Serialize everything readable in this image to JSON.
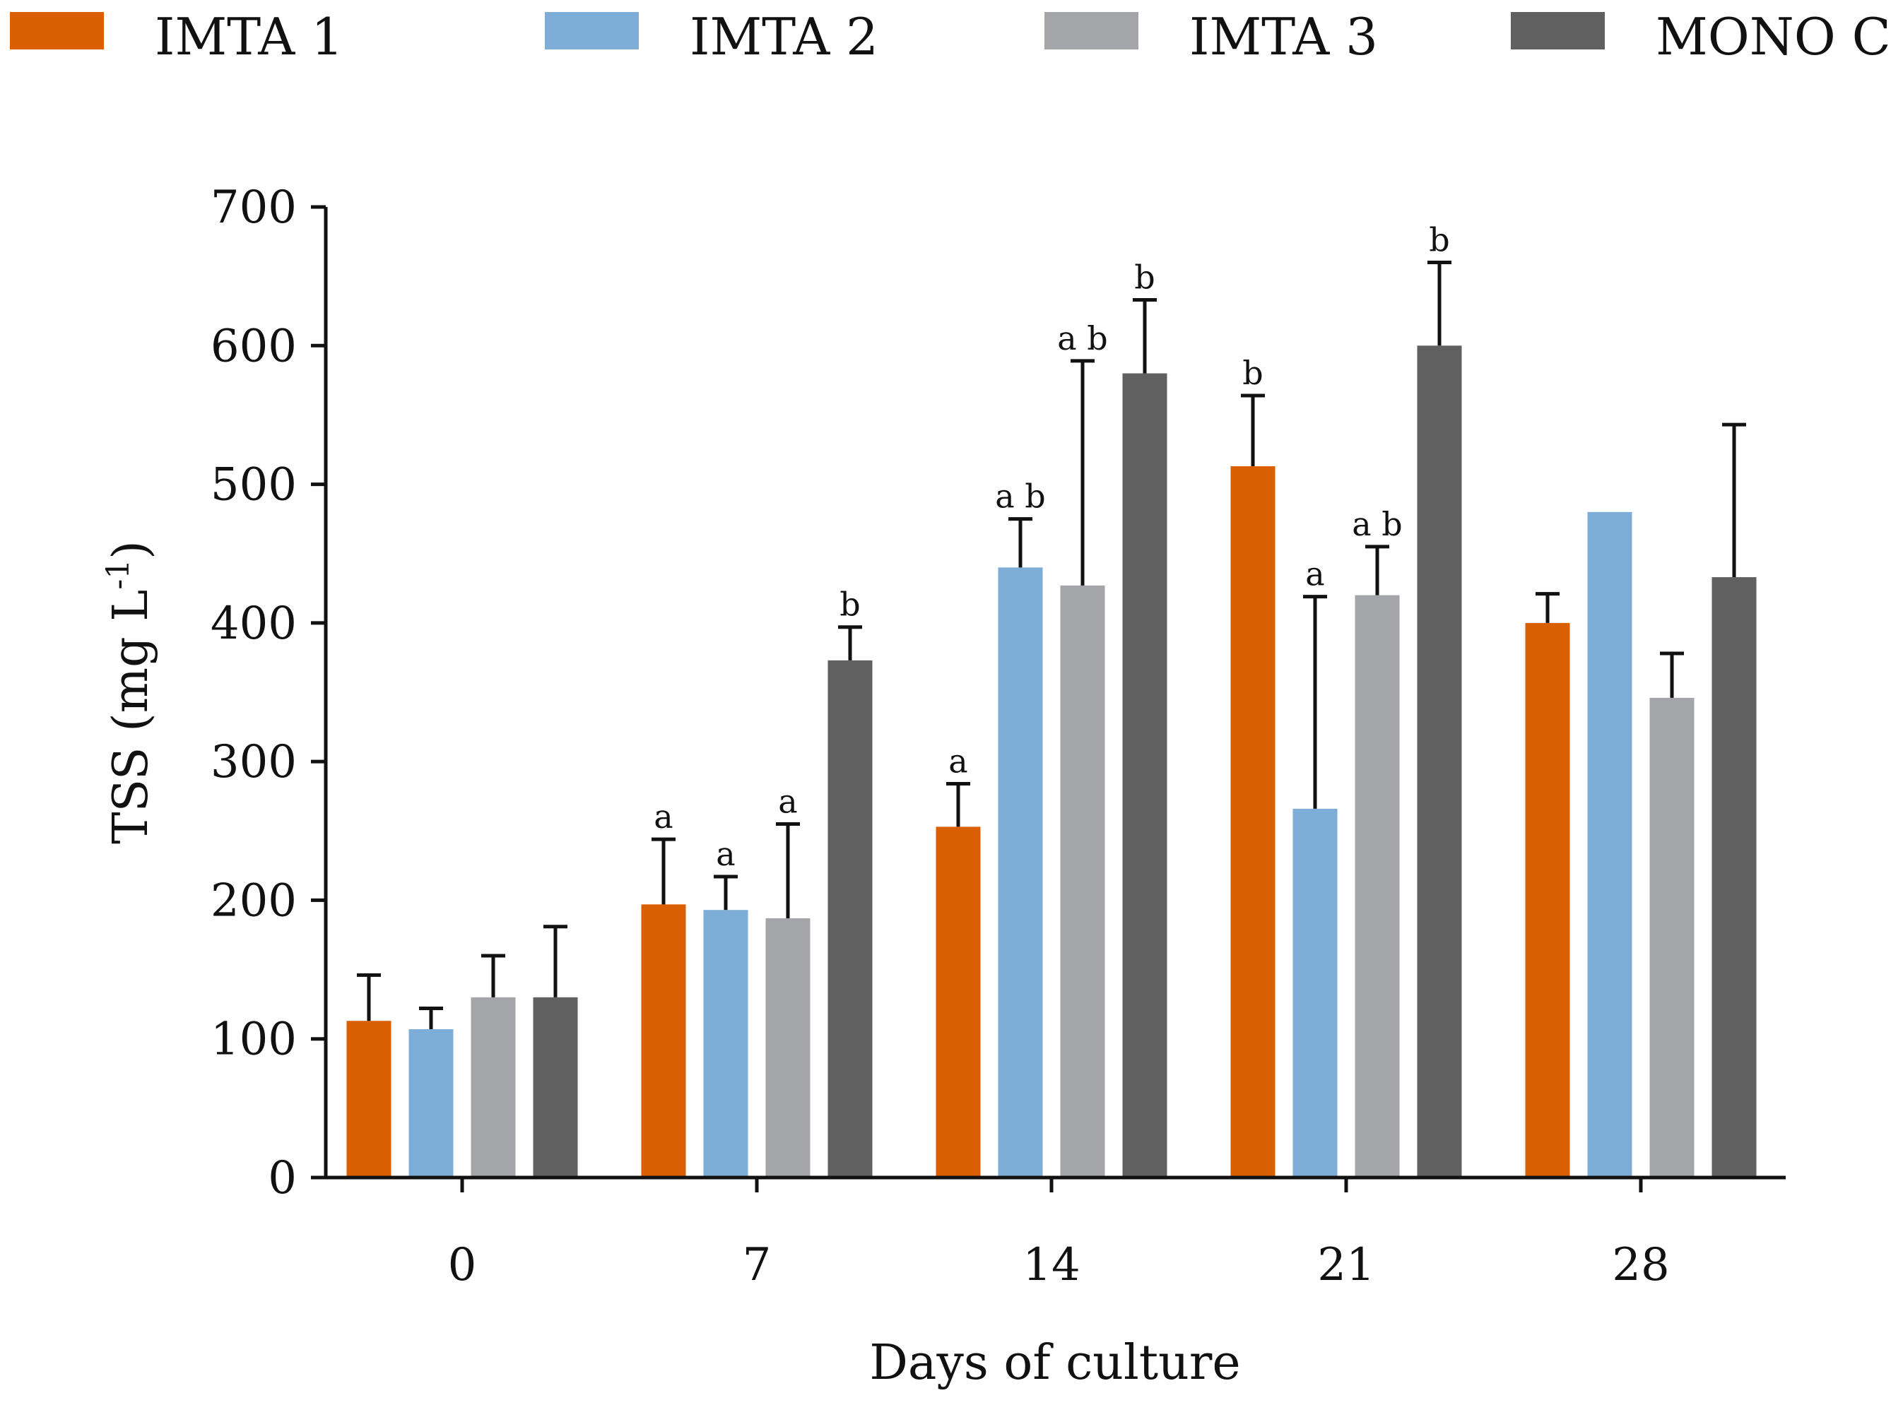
{
  "chart_data": {
    "type": "bar",
    "title": "",
    "xlabel": "Days of culture",
    "ylabel": "TSS (mg L",
    "ylabel_superscript": "-1",
    "ylabel_close": ")",
    "ylim": [
      0,
      700
    ],
    "yticks": [
      0,
      100,
      200,
      300,
      400,
      500,
      600,
      700
    ],
    "categories": [
      "0",
      "7",
      "14",
      "21",
      "28"
    ],
    "legend_position": "top",
    "series": [
      {
        "name": "IMTA 1",
        "color": "#D95F02",
        "values": [
          113,
          197,
          253,
          513,
          400
        ],
        "errors": [
          33,
          47,
          31,
          51,
          21
        ],
        "labels": [
          "",
          "a",
          "a",
          "b",
          ""
        ]
      },
      {
        "name": "IMTA 2",
        "color": "#7EAED8",
        "values": [
          107,
          193,
          440,
          266,
          480
        ],
        "errors": [
          15,
          24,
          35,
          153,
          0
        ],
        "labels": [
          "",
          "a",
          "a b",
          "a",
          ""
        ]
      },
      {
        "name": "IMTA 3",
        "color": "#A4A5A8",
        "values": [
          130,
          187,
          427,
          420,
          346
        ],
        "errors": [
          30,
          68,
          162,
          35,
          32
        ],
        "labels": [
          "",
          "a",
          "a b",
          "a b",
          ""
        ]
      },
      {
        "name": "MONO C",
        "color": "#606060",
        "values": [
          130,
          373,
          580,
          600,
          433
        ],
        "errors": [
          51,
          24,
          53,
          60,
          110
        ],
        "labels": [
          "",
          "b",
          "b",
          "b",
          ""
        ]
      }
    ]
  }
}
